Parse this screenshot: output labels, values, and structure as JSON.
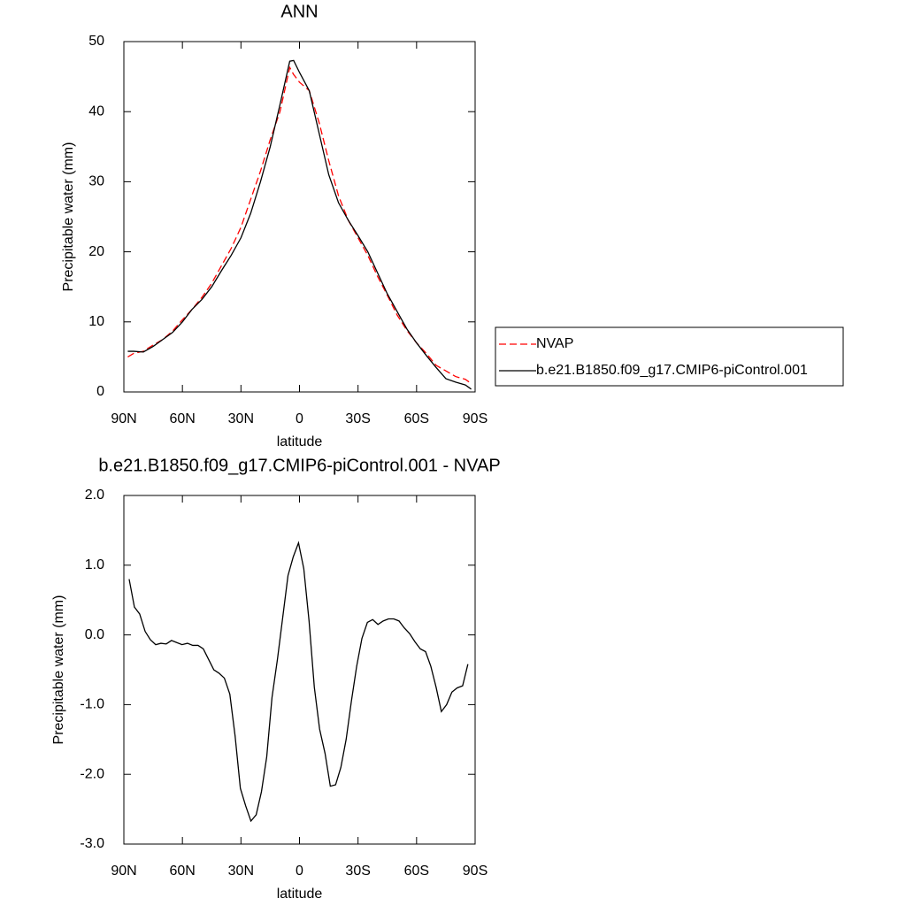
{
  "chart_data": [
    {
      "type": "line",
      "title": "ANN",
      "xlabel": "latitude",
      "ylabel": "Precipitable water (mm)",
      "x": [
        88,
        85,
        80,
        75,
        70,
        65,
        60,
        55,
        50,
        45,
        40,
        35,
        30,
        25,
        20,
        15,
        10,
        5,
        3,
        0,
        -5,
        -10,
        -15,
        -20,
        -25,
        -30,
        -35,
        -40,
        -45,
        -50,
        -55,
        -60,
        -65,
        -70,
        -75,
        -80,
        -85,
        -88
      ],
      "series": [
        {
          "name": "NVAP",
          "color": "#ff0000",
          "dash": true,
          "values": [
            5.0,
            5.5,
            5.8,
            6.7,
            7.5,
            8.7,
            10.3,
            11.8,
            13.5,
            15.5,
            18,
            20.5,
            23.5,
            27.5,
            31.5,
            36,
            40,
            46.3,
            45.3,
            44.2,
            43,
            38.5,
            33,
            28,
            24.5,
            22,
            19.5,
            16.5,
            13.8,
            11,
            8.8,
            7,
            5.5,
            3.8,
            3,
            2.2,
            1.8,
            1.2
          ]
        },
        {
          "name": "b.e21.B1850.f09_g17.CMIP6-piControl.001",
          "color": "#000000",
          "dash": false,
          "values": [
            5.8,
            5.8,
            5.7,
            6.5,
            7.5,
            8.5,
            10,
            11.8,
            13.2,
            15,
            17.3,
            19.5,
            22,
            25.5,
            30,
            35,
            41,
            47.2,
            47.3,
            45.6,
            43,
            37,
            31,
            27,
            24.5,
            22.3,
            20,
            17,
            14,
            11.5,
            9,
            7,
            5.2,
            3.5,
            1.9,
            1.4,
            1.0,
            0.4
          ]
        }
      ],
      "xlim": [
        90,
        -90
      ],
      "xticks": [
        {
          "value": 90,
          "label": "90N"
        },
        {
          "value": 60,
          "label": "60N"
        },
        {
          "value": 30,
          "label": "30N"
        },
        0,
        {
          "value": -30,
          "label": "30S"
        },
        {
          "value": -60,
          "label": "60S"
        },
        {
          "value": -90,
          "label": "90S"
        }
      ],
      "ylim": [
        0,
        50
      ],
      "yticks": [
        0,
        10,
        20,
        30,
        40,
        50
      ],
      "grid": false,
      "legend": "right"
    },
    {
      "type": "line",
      "title": "b.e21.B1850.f09_g17.CMIP6-piControl.001 - NVAP",
      "xlabel": "latitude",
      "ylabel": "Precipitable water (mm)",
      "x": [
        87.3,
        84.6,
        81.9,
        79.1,
        76.4,
        73.7,
        71.0,
        68.3,
        65.6,
        62.9,
        60.2,
        57.4,
        54.7,
        52.0,
        49.3,
        46.6,
        43.9,
        41.2,
        38.5,
        35.7,
        33.0,
        30.3,
        27.6,
        24.9,
        22.2,
        19.5,
        16.8,
        14.1,
        11.3,
        8.6,
        5.9,
        3.2,
        0.5,
        -2.2,
        -4.9,
        -7.6,
        -10.3,
        -13.1,
        -15.8,
        -18.5,
        -21.2,
        -23.9,
        -26.6,
        -29.3,
        -32.0,
        -34.8,
        -37.5,
        -40.2,
        -42.9,
        -45.6,
        -48.3,
        -51.0,
        -53.7,
        -56.4,
        -59.2,
        -61.9,
        -64.6,
        -67.3,
        -70.0,
        -72.7,
        -75.4,
        -78.1,
        -80.8,
        -83.6,
        -86.3
      ],
      "values": [
        0.8,
        0.4,
        0.3,
        0.05,
        -0.07,
        -0.14,
        -0.12,
        -0.13,
        -0.08,
        -0.11,
        -0.14,
        -0.12,
        -0.15,
        -0.15,
        -0.2,
        -0.35,
        -0.5,
        -0.55,
        -0.62,
        -0.85,
        -1.45,
        -2.2,
        -2.45,
        -2.67,
        -2.58,
        -2.25,
        -1.75,
        -0.9,
        -0.35,
        0.25,
        0.85,
        1.12,
        1.32,
        0.95,
        0.2,
        -0.75,
        -1.35,
        -1.7,
        -2.17,
        -2.15,
        -1.9,
        -1.5,
        -0.95,
        -0.45,
        -0.05,
        0.18,
        0.22,
        0.15,
        0.2,
        0.23,
        0.23,
        0.2,
        0.1,
        0.02,
        -0.1,
        -0.2,
        -0.24,
        -0.45,
        -0.75,
        -1.1,
        -1.0,
        -0.82,
        -0.76,
        -0.73,
        -0.42
      ],
      "color": "#000000",
      "xlim": [
        90,
        -90
      ],
      "xticks": [
        {
          "value": 90,
          "label": "90N"
        },
        {
          "value": 60,
          "label": "60N"
        },
        {
          "value": 30,
          "label": "30N"
        },
        0,
        {
          "value": -30,
          "label": "30S"
        },
        {
          "value": -60,
          "label": "60S"
        },
        {
          "value": -90,
          "label": "90S"
        }
      ],
      "ylim": [
        -3,
        2
      ],
      "yticks": [
        {
          "value": -3,
          "label": "-3.0"
        },
        {
          "value": -2,
          "label": "-2.0"
        },
        {
          "value": -1,
          "label": "-1.0"
        },
        {
          "value": 0,
          "label": "0.0"
        },
        {
          "value": 1,
          "label": "1.0"
        },
        {
          "value": 2,
          "label": "2.0"
        }
      ],
      "grid": false
    }
  ]
}
